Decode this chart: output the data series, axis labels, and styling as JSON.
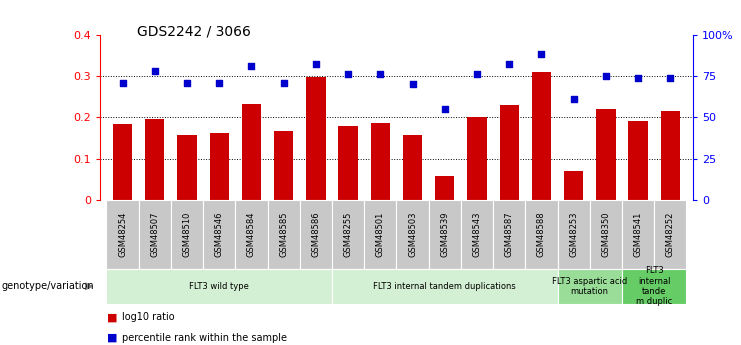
{
  "title": "GDS2242 / 3066",
  "samples": [
    "GSM48254",
    "GSM48507",
    "GSM48510",
    "GSM48546",
    "GSM48584",
    "GSM48585",
    "GSM48586",
    "GSM48255",
    "GSM48501",
    "GSM48503",
    "GSM48539",
    "GSM48543",
    "GSM48587",
    "GSM48588",
    "GSM48253",
    "GSM48350",
    "GSM48541",
    "GSM48252"
  ],
  "log10_ratio": [
    0.185,
    0.197,
    0.158,
    0.162,
    0.232,
    0.168,
    0.298,
    0.178,
    0.187,
    0.158,
    0.058,
    0.2,
    0.23,
    0.31,
    0.07,
    0.22,
    0.19,
    0.215
  ],
  "percentile_rank": [
    71,
    78,
    71,
    71,
    81,
    71,
    82,
    76,
    76,
    70,
    55,
    76,
    82,
    88,
    61,
    75,
    74,
    74
  ],
  "bar_color": "#cc0000",
  "dot_color": "#0000cc",
  "ylim_left": [
    0,
    0.4
  ],
  "ylim_right": [
    0,
    100
  ],
  "yticks_left": [
    0,
    0.1,
    0.2,
    0.3,
    0.4
  ],
  "ytick_labels_left": [
    "0",
    "0.1",
    "0.2",
    "0.3",
    "0.4"
  ],
  "yticks_right": [
    0,
    25,
    50,
    75,
    100
  ],
  "ytick_labels_right": [
    "0",
    "25",
    "50",
    "75",
    "100%"
  ],
  "groups": [
    {
      "label": "FLT3 wild type",
      "start": 0,
      "end": 7,
      "color": "#d4f0d4"
    },
    {
      "label": "FLT3 internal tandem duplications",
      "start": 7,
      "end": 14,
      "color": "#d4f0d4"
    },
    {
      "label": "FLT3 aspartic acid\nmutation",
      "start": 14,
      "end": 16,
      "color": "#99dd99"
    },
    {
      "label": "FLT3\ninternal\ntande\nm duplic",
      "start": 16,
      "end": 18,
      "color": "#66cc66"
    }
  ],
  "genotype_label": "genotype/variation",
  "legend_bar_label": "log10 ratio",
  "legend_dot_label": "percentile rank within the sample",
  "background_color": "#ffffff",
  "tick_bg_color": "#c8c8c8"
}
